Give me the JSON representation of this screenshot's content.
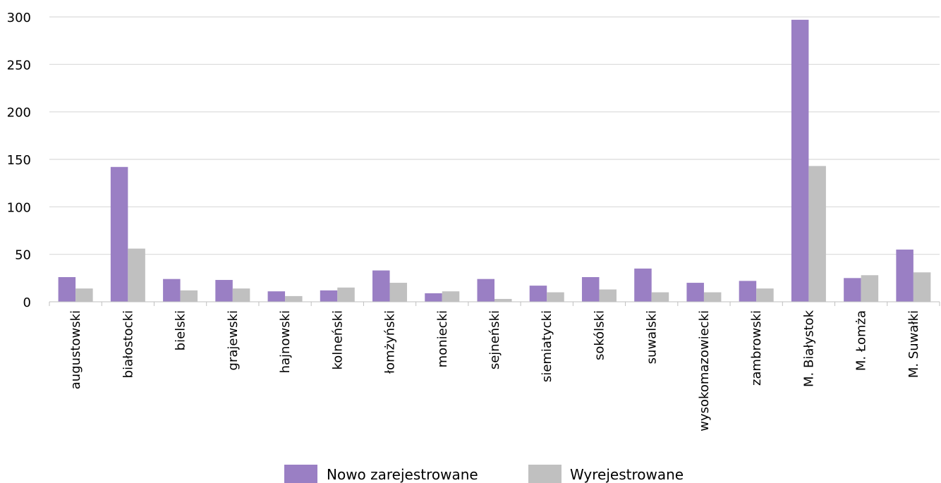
{
  "chart_data": {
    "type": "bar",
    "title": "",
    "xlabel": "",
    "ylabel": "",
    "categories": [
      "augustowski",
      "białostocki",
      "bielski",
      "grajewski",
      "hajnowski",
      "kolneński",
      "łomżyński",
      "moniecki",
      "sejneński",
      "siemiatycki",
      "sokólski",
      "suwalski",
      "wysokomazowiecki",
      "zambrowski",
      "M. Białystok",
      "M. Łomża",
      "M. Suwałki"
    ],
    "series": [
      {
        "name": "Nowo zarejestrowane",
        "color": "#9a7fc4",
        "values": [
          26,
          142,
          24,
          23,
          11,
          12,
          33,
          9,
          24,
          17,
          26,
          35,
          20,
          22,
          297,
          25,
          55
        ]
      },
      {
        "name": "Wyrejestrowane",
        "color": "#c0c0c0",
        "values": [
          14,
          56,
          12,
          14,
          6,
          15,
          20,
          11,
          3,
          10,
          13,
          10,
          10,
          14,
          143,
          28,
          31
        ]
      }
    ],
    "ylim": [
      0,
      300
    ],
    "yticks": [
      "0",
      "50",
      "100",
      "150",
      "200",
      "250",
      "300"
    ],
    "grid": true,
    "legend_position": "bottom"
  }
}
